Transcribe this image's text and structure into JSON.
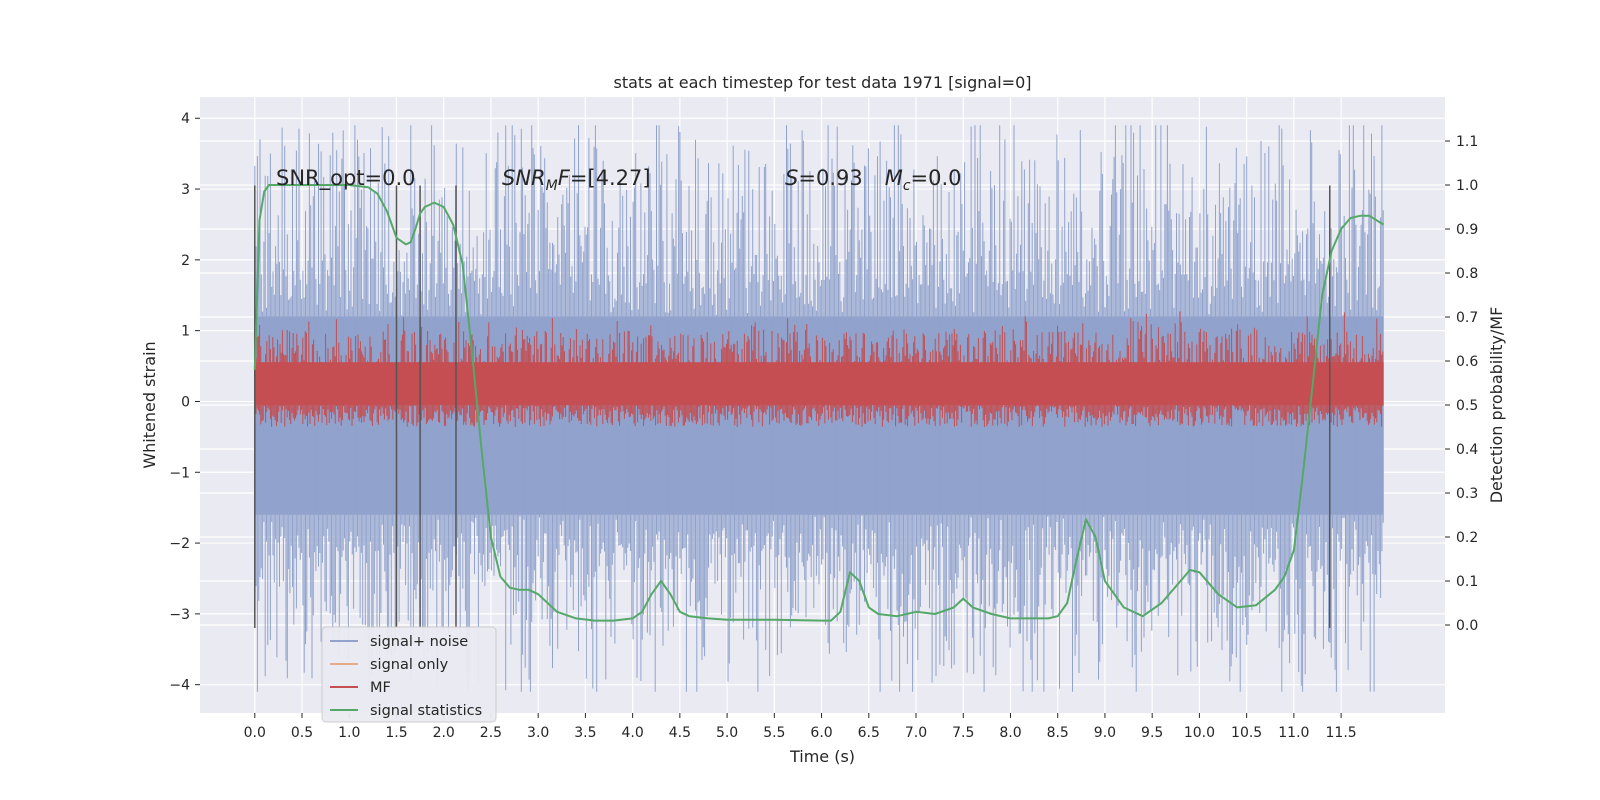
{
  "chart_data": {
    "type": "line",
    "title": "stats at each timestep for test data 1971 [signal=0]",
    "xlabel": "Time (s)",
    "ylabel": "Whitened strain",
    "y2label": "Detection probability/MF",
    "xlim": [
      -0.58,
      12.6
    ],
    "ylim": [
      -4.4,
      4.3
    ],
    "y2lim": [
      -0.2,
      1.2
    ],
    "xticks": [
      "0.0",
      "0.5",
      "1.0",
      "1.5",
      "2.0",
      "2.5",
      "3.0",
      "3.5",
      "4.0",
      "4.5",
      "5.0",
      "5.5",
      "6.0",
      "6.5",
      "7.0",
      "7.5",
      "8.0",
      "8.5",
      "9.0",
      "9.5",
      "10.0",
      "10.5",
      "11.0",
      "11.5"
    ],
    "yticks": [
      "4",
      "3",
      "2",
      "1",
      "0",
      "−1",
      "−2",
      "−3",
      "−4"
    ],
    "y2ticks": [
      "1.1",
      "1.0",
      "0.9",
      "0.8",
      "0.7",
      "0.6",
      "0.5",
      "0.4",
      "0.3",
      "0.2",
      "0.1",
      "0.0"
    ],
    "annotations": {
      "snr_opt": "SNR_opt=0.0",
      "snr_mf": "=[4.27]",
      "snr_mf_base": "SNR",
      "snr_mf_sub": "M",
      "snr_mf_var": "F",
      "s_var": "S",
      "s_val": "=0.93",
      "mc_var": "M",
      "mc_sub": "c",
      "mc_val": "=0.0"
    },
    "vlines_x": [
      0.0,
      1.5,
      1.75,
      2.13,
      11.38
    ],
    "series": [
      {
        "name": "signal+ noise",
        "color": "#91a3cc",
        "envelope": {
          "x_start": 0.0,
          "x_end": 11.95,
          "core_upper": 1.2,
          "core_lower": -1.6,
          "peak_upper": 3.9,
          "peak_lower": -4.1
        }
      },
      {
        "name": "signal only",
        "color": "#e8a88a",
        "values_note_free": true
      },
      {
        "name": "MF",
        "color": "#c44e52",
        "axis": "right",
        "envelope": {
          "x_start": 0.0,
          "x_end": 11.95,
          "lower": 0.5,
          "upper": 0.62,
          "peak": 0.67
        }
      },
      {
        "name": "signal statistics",
        "color": "#55a868",
        "axis": "right",
        "x": [
          0.0,
          0.05,
          0.1,
          0.15,
          0.2,
          0.4,
          0.7,
          1.0,
          1.2,
          1.3,
          1.4,
          1.5,
          1.6,
          1.65,
          1.7,
          1.75,
          1.8,
          1.9,
          2.0,
          2.1,
          2.2,
          2.3,
          2.4,
          2.5,
          2.6,
          2.7,
          2.8,
          2.9,
          3.0,
          3.1,
          3.2,
          3.4,
          3.6,
          3.8,
          4.0,
          4.1,
          4.2,
          4.3,
          4.4,
          4.5,
          4.6,
          4.8,
          5.0,
          5.5,
          6.0,
          6.1,
          6.2,
          6.3,
          6.4,
          6.5,
          6.6,
          6.8,
          7.0,
          7.2,
          7.4,
          7.5,
          7.6,
          7.8,
          8.0,
          8.2,
          8.4,
          8.5,
          8.6,
          8.7,
          8.8,
          8.9,
          9.0,
          9.2,
          9.4,
          9.6,
          9.8,
          9.9,
          10.0,
          10.2,
          10.4,
          10.6,
          10.8,
          10.9,
          11.0,
          11.1,
          11.2,
          11.3,
          11.4,
          11.5,
          11.6,
          11.7,
          11.8,
          11.95
        ],
        "values": [
          0.58,
          0.92,
          0.985,
          1.0,
          1.0,
          1.0,
          1.0,
          1.0,
          0.995,
          0.98,
          0.94,
          0.88,
          0.865,
          0.87,
          0.9,
          0.935,
          0.95,
          0.96,
          0.95,
          0.91,
          0.82,
          0.62,
          0.4,
          0.2,
          0.11,
          0.085,
          0.08,
          0.08,
          0.07,
          0.05,
          0.03,
          0.015,
          0.01,
          0.01,
          0.015,
          0.03,
          0.07,
          0.1,
          0.07,
          0.03,
          0.02,
          0.015,
          0.012,
          0.012,
          0.01,
          0.01,
          0.03,
          0.12,
          0.1,
          0.04,
          0.025,
          0.02,
          0.03,
          0.025,
          0.04,
          0.06,
          0.04,
          0.025,
          0.015,
          0.015,
          0.015,
          0.02,
          0.05,
          0.15,
          0.24,
          0.2,
          0.1,
          0.04,
          0.02,
          0.05,
          0.1,
          0.125,
          0.12,
          0.07,
          0.04,
          0.045,
          0.08,
          0.11,
          0.17,
          0.35,
          0.55,
          0.75,
          0.85,
          0.9,
          0.925,
          0.93,
          0.93,
          0.91
        ]
      }
    ],
    "legend": {
      "placement": "lower-left"
    },
    "grid": true
  }
}
